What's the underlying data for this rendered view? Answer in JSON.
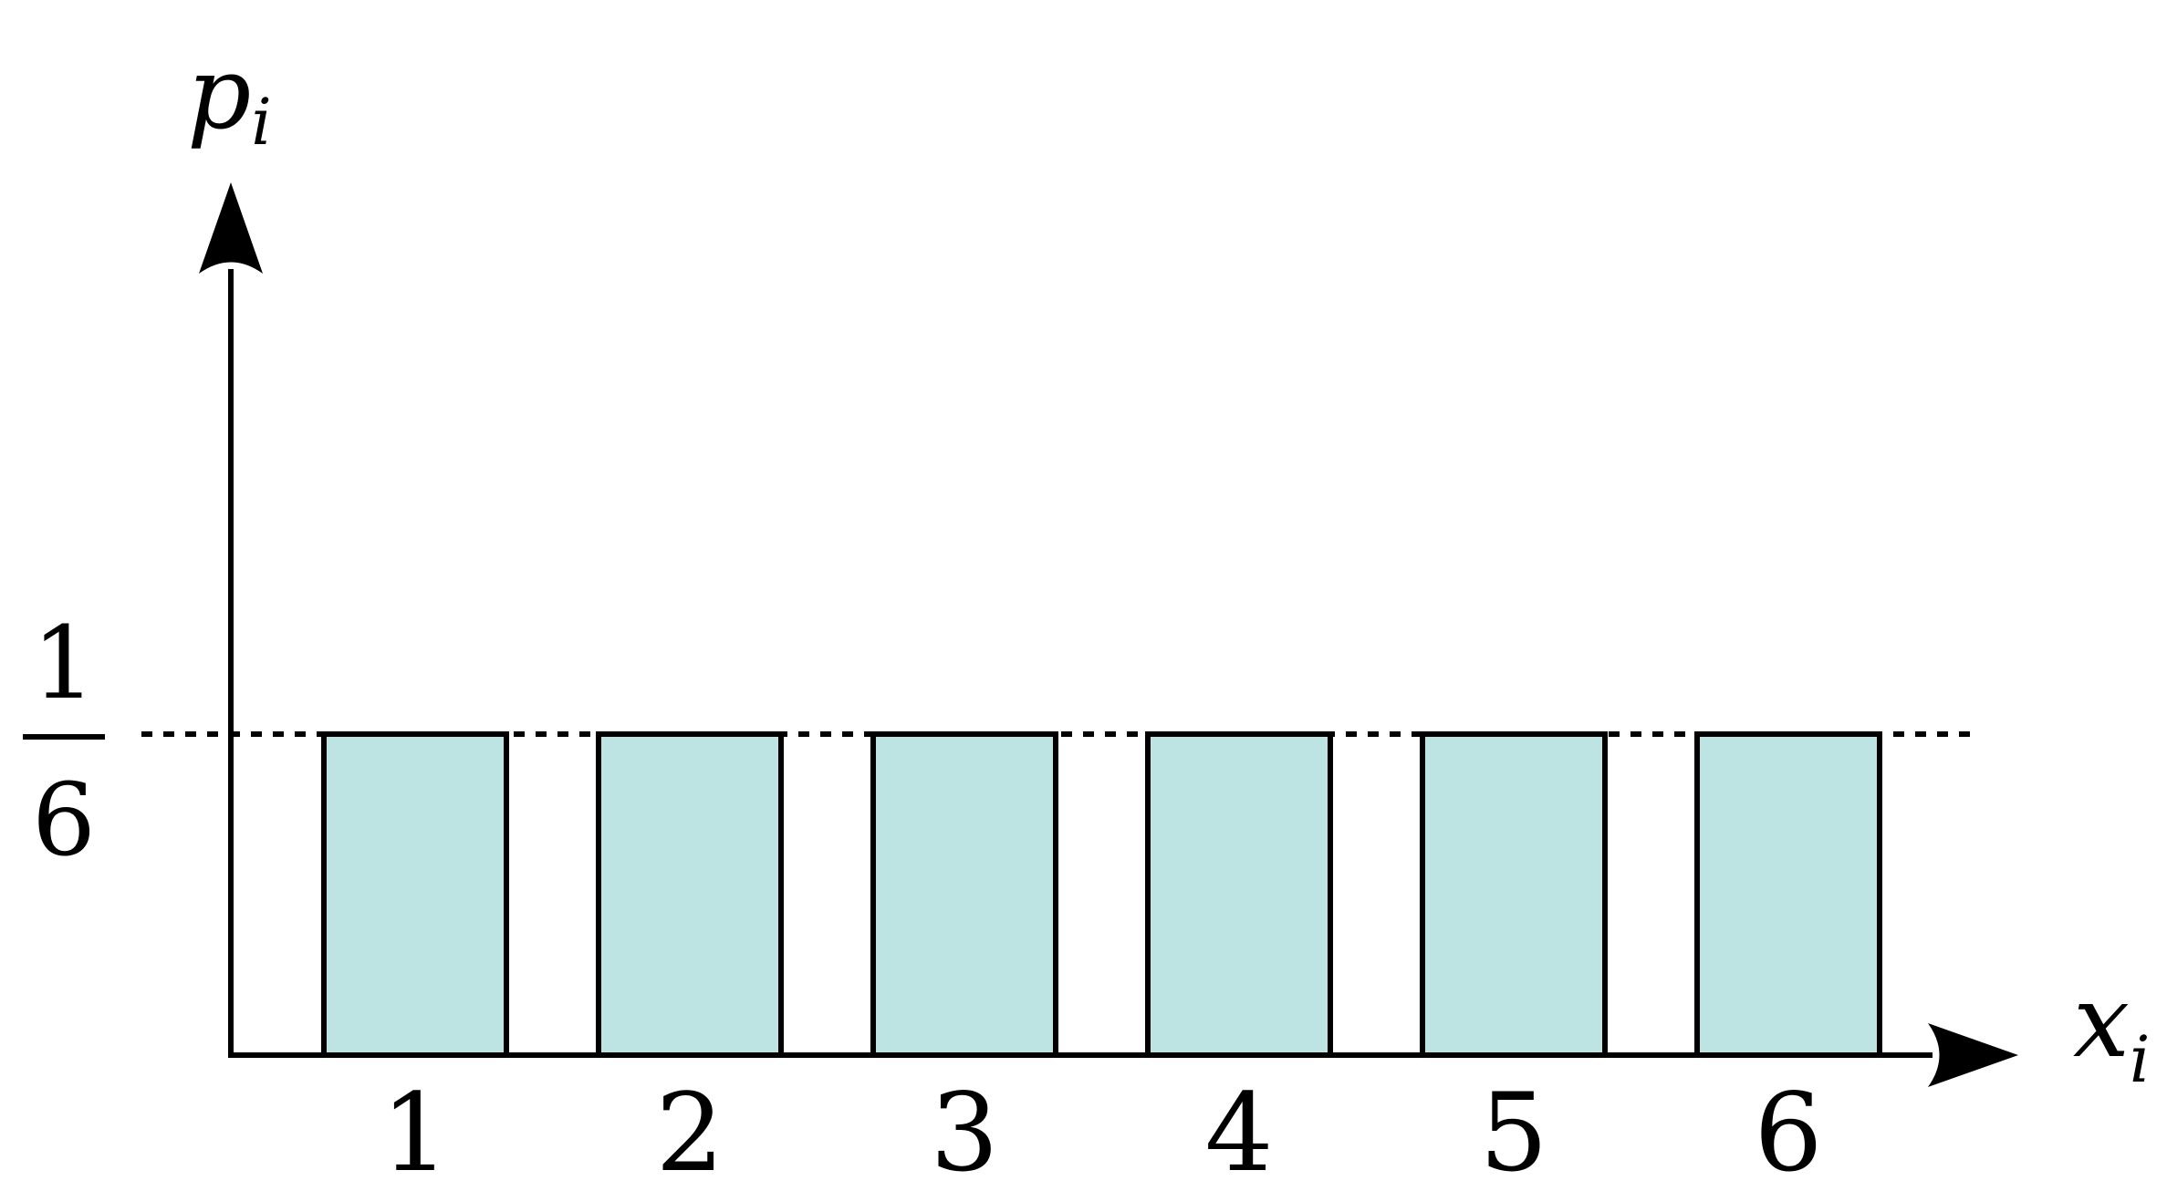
{
  "chart_data": {
    "type": "bar",
    "categories": [
      "1",
      "2",
      "3",
      "4",
      "5",
      "6"
    ],
    "values": [
      0.16667,
      0.16667,
      0.16667,
      0.16667,
      0.16667,
      0.16667
    ],
    "xlabel": "x",
    "xlabel_subscript": "i",
    "ylabel": "p",
    "ylabel_subscript": "i",
    "y_reference": {
      "value": 0.16667,
      "numerator": "1",
      "denominator": "6",
      "line_style": "dotted"
    },
    "grid": false,
    "legend": "none"
  },
  "colors": {
    "bar_fill": "#bde3e3",
    "bar_stroke": "#000000",
    "axis": "#000000",
    "background": "#ffffff"
  }
}
